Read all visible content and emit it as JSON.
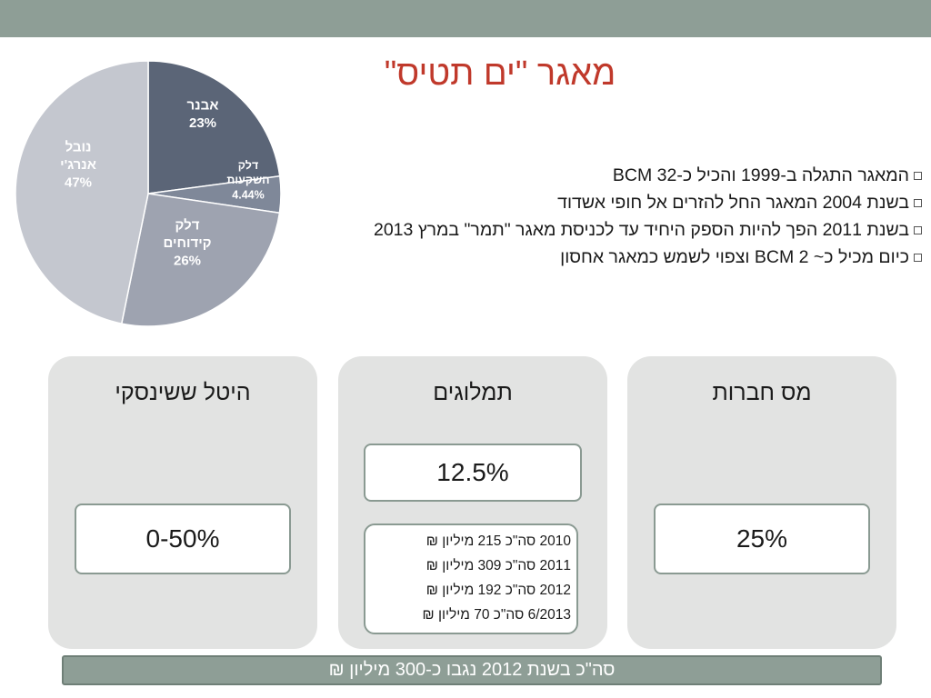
{
  "title": "מאגר \"ים תטיס\"",
  "chart_data": {
    "type": "pie",
    "slices": [
      {
        "lines": [
          "אבנר",
          "23%"
        ],
        "value": 23,
        "color": "#5b6577"
      },
      {
        "lines": [
          "דלק",
          "השקעות",
          "4.44%"
        ],
        "value": 4.44,
        "color": "#7f8899"
      },
      {
        "lines": [
          "דלק",
          "קידוחים",
          "26%"
        ],
        "value": 26,
        "color": "#9ea3b0"
      },
      {
        "lines": [
          "נובל",
          "אנרג'י",
          "47%"
        ],
        "value": 47,
        "color": "#c4c7cf"
      }
    ]
  },
  "bullets": [
    "המאגר התגלה ב-1999 והכיל כ-BCM 32",
    "בשנת 2004 המאגר החל להזרים אל חופי אשדוד",
    "בשנת 2011 הפך להיות הספק היחיד עד לכניסת מאגר \"תמר\" במרץ 2013",
    "כיום מכיל כ~ BCM 2 וצפוי לשמש כמאגר אחסון"
  ],
  "panels": {
    "corporate": {
      "title": "מס חברות",
      "value": "25%"
    },
    "royalties": {
      "title": "תמלוגים",
      "value": "12.5%",
      "revenues": [
        "2010 סה\"כ 215 מיליון ₪",
        "2011 סה\"כ 309 מיליון ₪",
        "2012 סה\"כ 192 מיליון ₪",
        "6/2013 סה\"כ 70 מיליון ₪"
      ]
    },
    "sheshinski": {
      "title": "היטל ששינסקי",
      "value": "0-50%"
    }
  },
  "footer": "סה\"כ בשנת 2012 נגבו כ-300 מיליון ₪"
}
